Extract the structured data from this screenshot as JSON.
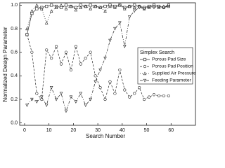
{
  "chart_data": {
    "type": "line",
    "x_label": "Search Number",
    "y_label": "Normalized Design Parameter",
    "legend_title": "Simplex Search",
    "legend": "right",
    "x": [
      1,
      3,
      5,
      7,
      9,
      11,
      13,
      15,
      17,
      19,
      21,
      23,
      25,
      27,
      29,
      31,
      33,
      35,
      37,
      39,
      41,
      43,
      45,
      47,
      49,
      51,
      53,
      55,
      57,
      59
    ],
    "series": [
      {
        "name": "Porous Pad Size",
        "color": "#222222",
        "marker": "square",
        "dash": "none",
        "values": [
          0.75,
          0.93,
          0.97,
          0.98,
          0.99,
          1.0,
          0.99,
          0.98,
          1.0,
          0.99,
          0.98,
          1.0,
          0.99,
          1.0,
          0.99,
          0.98,
          0.99,
          1.0,
          0.99,
          1.0,
          0.98,
          0.99,
          1.0,
          0.99,
          0.98,
          0.99,
          1.0,
          0.99,
          0.98,
          0.99
        ]
      },
      {
        "name": "Porous Pad Position",
        "color": "#222222",
        "marker": "circle",
        "dash": "3,2",
        "values": [
          0.75,
          0.6,
          0.25,
          0.2,
          0.62,
          0.55,
          0.65,
          0.5,
          0.6,
          0.45,
          0.65,
          0.5,
          0.55,
          0.6,
          0.4,
          0.3,
          0.2,
          0.35,
          0.25,
          0.45,
          0.28,
          0.22,
          0.25,
          0.3,
          0.2,
          0.22,
          0.24,
          0.23,
          0.23,
          0.23
        ]
      },
      {
        "name": "Supplied Air Pressure",
        "color": "#222222",
        "marker": "triangle-up",
        "dash": "1,2",
        "values": [
          0.8,
          0.95,
          1.0,
          0.97,
          0.85,
          0.95,
          0.98,
          1.0,
          0.97,
          0.99,
          0.96,
          0.98,
          0.99,
          0.97,
          0.99,
          0.98,
          0.95,
          0.99,
          0.98,
          1.0,
          0.97,
          0.99,
          0.98,
          0.99,
          0.97,
          0.98,
          0.99,
          0.98,
          0.99,
          1.0
        ]
      },
      {
        "name": "Feeding Parameter",
        "color": "#222222",
        "marker": "triangle-down",
        "dash": "4,2,1,2",
        "values": [
          0.15,
          0.2,
          0.18,
          0.22,
          0.15,
          0.3,
          0.2,
          0.25,
          0.1,
          0.22,
          0.18,
          0.25,
          0.15,
          0.2,
          0.35,
          0.45,
          0.55,
          0.7,
          0.8,
          0.85,
          0.65,
          0.9,
          0.95,
          0.98,
          0.97,
          0.99,
          0.98,
          0.99,
          0.98,
          1.0
        ]
      }
    ],
    "xlim": [
      -2,
      70
    ],
    "xticks": [
      0,
      10,
      20,
      30,
      40,
      50,
      60
    ],
    "ylim": [
      -0.02,
      1.02
    ],
    "yticks": [
      {
        "value": 0,
        "label": "0.0"
      },
      0.2,
      0.4,
      0.6,
      0.8,
      {
        "value": 1,
        "label": "1.0"
      }
    ]
  }
}
